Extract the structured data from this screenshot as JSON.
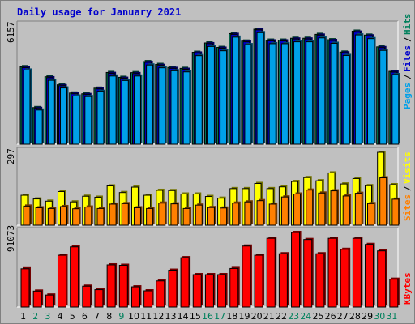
{
  "title": "Daily usage for January 2021",
  "colors": {
    "background": "#c0c0c0",
    "plot_background": "#c0c0c0",
    "title": "#0000cc",
    "hits": "#00805c",
    "files": "#0000cc",
    "pages": "#00a0e8",
    "visits": "#ffff00",
    "sites": "#ff8000",
    "kbytes": "#ff0000",
    "weekday_label": "#000000",
    "weekend_label": "#00805c"
  },
  "chart_data": [
    {
      "type": "bar",
      "panel": "top",
      "max_label": "6157",
      "ylim": [
        0,
        6157
      ],
      "legend": [
        "Pages",
        "Files",
        "Hits"
      ],
      "categories": [
        "1",
        "2",
        "3",
        "4",
        "5",
        "6",
        "7",
        "8",
        "9",
        "10",
        "11",
        "12",
        "13",
        "14",
        "15",
        "16",
        "17",
        "18",
        "19",
        "20",
        "21",
        "22",
        "23",
        "24",
        "25",
        "26",
        "27",
        "28",
        "29",
        "30",
        "31"
      ],
      "series": [
        {
          "name": "Hits",
          "values": [
            4150,
            1960,
            3610,
            3180,
            2740,
            2700,
            3000,
            3840,
            3580,
            3830,
            4420,
            4270,
            4110,
            4060,
            4920,
            5420,
            5180,
            5920,
            5520,
            6157,
            5570,
            5570,
            5670,
            5670,
            5880,
            5590,
            4930,
            6050,
            5840,
            5210,
            3900
          ]
        },
        {
          "name": "Files",
          "values": [
            4100,
            1920,
            3560,
            3130,
            2700,
            2660,
            2960,
            3790,
            3530,
            3780,
            4380,
            4220,
            4060,
            4010,
            4880,
            5380,
            5140,
            5880,
            5480,
            6120,
            5530,
            5530,
            5630,
            5630,
            5840,
            5550,
            4890,
            6000,
            5800,
            5170,
            3860
          ]
        },
        {
          "name": "Pages",
          "values": [
            3970,
            1830,
            3420,
            3010,
            2580,
            2550,
            2830,
            3650,
            3410,
            3650,
            4240,
            4090,
            3930,
            3870,
            4740,
            5230,
            5000,
            5730,
            5330,
            5970,
            5380,
            5380,
            5480,
            5480,
            5690,
            5400,
            4750,
            5850,
            5650,
            5020,
            3730
          ]
        }
      ]
    },
    {
      "type": "bar",
      "panel": "middle",
      "max_label": "297",
      "ylim": [
        0,
        297
      ],
      "legend": [
        "Sites",
        "Visits"
      ],
      "categories": [
        "1",
        "2",
        "3",
        "4",
        "5",
        "6",
        "7",
        "8",
        "9",
        "10",
        "11",
        "12",
        "13",
        "14",
        "15",
        "16",
        "17",
        "18",
        "19",
        "20",
        "21",
        "22",
        "23",
        "24",
        "25",
        "26",
        "27",
        "28",
        "29",
        "30",
        "31"
      ],
      "series": [
        {
          "name": "Visits",
          "values": [
            122,
            107,
            98,
            137,
            95,
            118,
            114,
            160,
            133,
            155,
            122,
            142,
            141,
            127,
            127,
            117,
            110,
            149,
            149,
            170,
            149,
            156,
            178,
            194,
            181,
            213,
            168,
            190,
            161,
            297,
            165
          ]
        },
        {
          "name": "Sites",
          "values": [
            78,
            71,
            68,
            76,
            67,
            74,
            68,
            86,
            88,
            71,
            68,
            90,
            87,
            68,
            82,
            72,
            70,
            90,
            95,
            100,
            86,
            115,
            127,
            143,
            131,
            140,
            119,
            130,
            88,
            193,
            106
          ]
        }
      ]
    },
    {
      "type": "bar",
      "panel": "bottom",
      "max_label": "91073",
      "ylim": [
        0,
        91073
      ],
      "legend": [
        "KBytes"
      ],
      "categories": [
        "1",
        "2",
        "3",
        "4",
        "5",
        "6",
        "7",
        "8",
        "9",
        "10",
        "11",
        "12",
        "13",
        "14",
        "15",
        "16",
        "17",
        "18",
        "19",
        "20",
        "21",
        "22",
        "23",
        "24",
        "25",
        "26",
        "27",
        "28",
        "29",
        "30",
        "31"
      ],
      "series": [
        {
          "name": "KBytes",
          "values": [
            46700,
            19500,
            14700,
            63300,
            73500,
            25500,
            21200,
            51500,
            51000,
            24700,
            19800,
            31900,
            45000,
            60300,
            39600,
            39600,
            39600,
            47100,
            74500,
            63300,
            84000,
            65100,
            91073,
            82500,
            65100,
            84000,
            70500,
            84000,
            76500,
            68600,
            34000
          ]
        }
      ]
    }
  ],
  "weekend_days": [
    "2",
    "3",
    "9",
    "16",
    "17",
    "23",
    "24",
    "30",
    "31"
  ]
}
